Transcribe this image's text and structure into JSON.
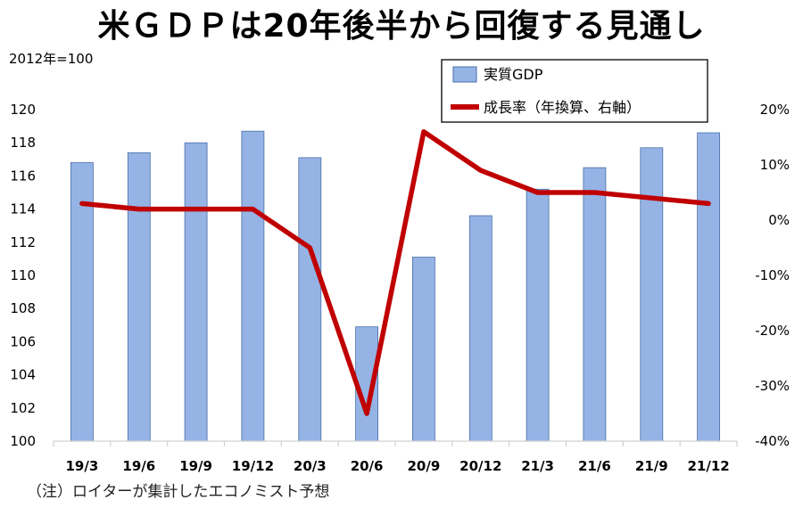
{
  "page": {
    "title": "米ＧＤＰは20年後半から回復する見通し",
    "unit_note": "2012年=100",
    "footnote": "（注）ロイターが集計したエコノミスト予想"
  },
  "colors": {
    "bar_fill": "#95B3E5",
    "bar_stroke": "#4A6FA8",
    "line": "#C00000",
    "axis": "#D0D0D0"
  },
  "chart_data": {
    "type": "bar",
    "title": "米ＧＤＰは20年後半から回復する見通し",
    "categories": [
      "19/3",
      "19/6",
      "19/9",
      "19/12",
      "20/3",
      "20/6",
      "20/9",
      "20/12",
      "21/3",
      "21/6",
      "21/9",
      "21/12"
    ],
    "series": [
      {
        "name": "実質GDP",
        "type": "bar",
        "axis": "left",
        "values": [
          116.8,
          117.4,
          118.0,
          118.7,
          117.1,
          106.9,
          111.1,
          113.6,
          115.2,
          116.5,
          117.7,
          118.6
        ]
      },
      {
        "name": "成長率（年換算、右軸）",
        "type": "line",
        "axis": "right",
        "values": [
          3,
          2,
          2,
          2,
          -5,
          -35,
          16,
          9,
          5,
          5,
          4,
          3
        ]
      }
    ],
    "y_left": {
      "min": 100,
      "max": 120,
      "ticks": [
        "100",
        "102",
        "104",
        "106",
        "108",
        "110",
        "112",
        "114",
        "116",
        "118",
        "120"
      ]
    },
    "y_right": {
      "min": -40,
      "max": 20,
      "ticks": [
        "-40%",
        "-30%",
        "-20%",
        "-10%",
        "0%",
        "10%",
        "20%"
      ]
    },
    "legend": [
      "実質GDP",
      "成長率（年換算、右軸）"
    ],
    "legend_position": "top-right",
    "grid": false
  }
}
